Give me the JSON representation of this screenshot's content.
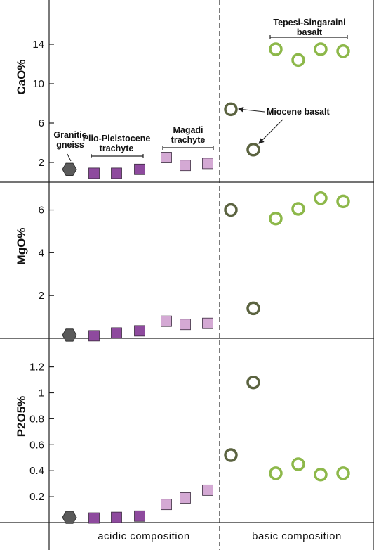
{
  "chart_data": {
    "type": "scatter",
    "x_categories_footer": [
      "acidic composition",
      "basic composition"
    ],
    "series_groups": [
      {
        "name": "Granitic gneiss",
        "marker": "hexagon",
        "color": "#5a5a5a"
      },
      {
        "name": "Plio-Pleistocene trachyte",
        "marker": "square",
        "color": "#8e4a9e"
      },
      {
        "name": "Magadi trachyte",
        "marker": "square",
        "color": "#d4a9d4"
      },
      {
        "name": "Miocene basalt",
        "marker": "open-circle",
        "color": "#5b6340"
      },
      {
        "name": "Tepesi-Singaraini basalt",
        "marker": "open-circle",
        "color": "#8db84a"
      }
    ],
    "panels": [
      {
        "ylabel": "CaO%",
        "ticks": [
          2,
          6,
          10,
          14
        ],
        "tick_labels": [
          "2",
          "6",
          "10",
          "14"
        ],
        "ylim": [
          0,
          18.5
        ],
        "points": [
          {
            "group": 0,
            "x": 1,
            "y": 1.3
          },
          {
            "group": 1,
            "x": 2,
            "y": 0.9
          },
          {
            "group": 1,
            "x": 3,
            "y": 0.9
          },
          {
            "group": 1,
            "x": 4,
            "y": 1.3
          },
          {
            "group": 2,
            "x": 5,
            "y": 2.5
          },
          {
            "group": 2,
            "x": 6,
            "y": 1.7
          },
          {
            "group": 2,
            "x": 7,
            "y": 1.9
          },
          {
            "group": 3,
            "x": 8,
            "y": 7.4
          },
          {
            "group": 3,
            "x": 9,
            "y": 3.3
          },
          {
            "group": 4,
            "x": 10,
            "y": 13.5
          },
          {
            "group": 4,
            "x": 11,
            "y": 12.4
          },
          {
            "group": 4,
            "x": 12,
            "y": 13.5
          },
          {
            "group": 4,
            "x": 13,
            "y": 13.3
          }
        ],
        "annotations": {
          "granitic": [
            "Granitic",
            "gneiss"
          ],
          "plio": [
            "Plio-Pleistocene",
            "trachyte"
          ],
          "magadi": [
            "Magadi",
            "trachyte"
          ],
          "miocene": "Miocene basalt",
          "tepesi": [
            "Tepesi-Singaraini",
            "basalt"
          ]
        }
      },
      {
        "ylabel": "MgO%",
        "ticks": [
          2,
          4,
          6
        ],
        "tick_labels": [
          "2",
          "4",
          "6"
        ],
        "ylim": [
          0,
          7.3
        ],
        "points": [
          {
            "group": 0,
            "x": 1,
            "y": 0.15
          },
          {
            "group": 1,
            "x": 2,
            "y": 0.12
          },
          {
            "group": 1,
            "x": 3,
            "y": 0.25
          },
          {
            "group": 1,
            "x": 4,
            "y": 0.35
          },
          {
            "group": 2,
            "x": 5,
            "y": 0.8
          },
          {
            "group": 2,
            "x": 6,
            "y": 0.65
          },
          {
            "group": 2,
            "x": 7,
            "y": 0.7
          },
          {
            "group": 3,
            "x": 8,
            "y": 6.0
          },
          {
            "group": 3,
            "x": 9,
            "y": 1.4
          },
          {
            "group": 4,
            "x": 10,
            "y": 5.6
          },
          {
            "group": 4,
            "x": 11,
            "y": 6.05
          },
          {
            "group": 4,
            "x": 12,
            "y": 6.55
          },
          {
            "group": 4,
            "x": 13,
            "y": 6.4
          }
        ]
      },
      {
        "ylabel": "P2O5%",
        "ticks": [
          0.2,
          0.4,
          0.6,
          0.8,
          1,
          1.2
        ],
        "tick_labels": [
          "0.2",
          "0.4",
          "0.6",
          "0.8",
          "1",
          "1.2"
        ],
        "ylim": [
          0,
          1.42
        ],
        "points": [
          {
            "group": 0,
            "x": 1,
            "y": 0.04
          },
          {
            "group": 1,
            "x": 2,
            "y": 0.035
          },
          {
            "group": 1,
            "x": 3,
            "y": 0.04
          },
          {
            "group": 1,
            "x": 4,
            "y": 0.05
          },
          {
            "group": 2,
            "x": 5,
            "y": 0.14
          },
          {
            "group": 2,
            "x": 6,
            "y": 0.19
          },
          {
            "group": 2,
            "x": 7,
            "y": 0.25
          },
          {
            "group": 3,
            "x": 8,
            "y": 0.52
          },
          {
            "group": 3,
            "x": 9,
            "y": 1.08
          },
          {
            "group": 4,
            "x": 10,
            "y": 0.38
          },
          {
            "group": 4,
            "x": 11,
            "y": 0.45
          },
          {
            "group": 4,
            "x": 12,
            "y": 0.37
          },
          {
            "group": 4,
            "x": 13,
            "y": 0.38
          }
        ]
      }
    ]
  }
}
